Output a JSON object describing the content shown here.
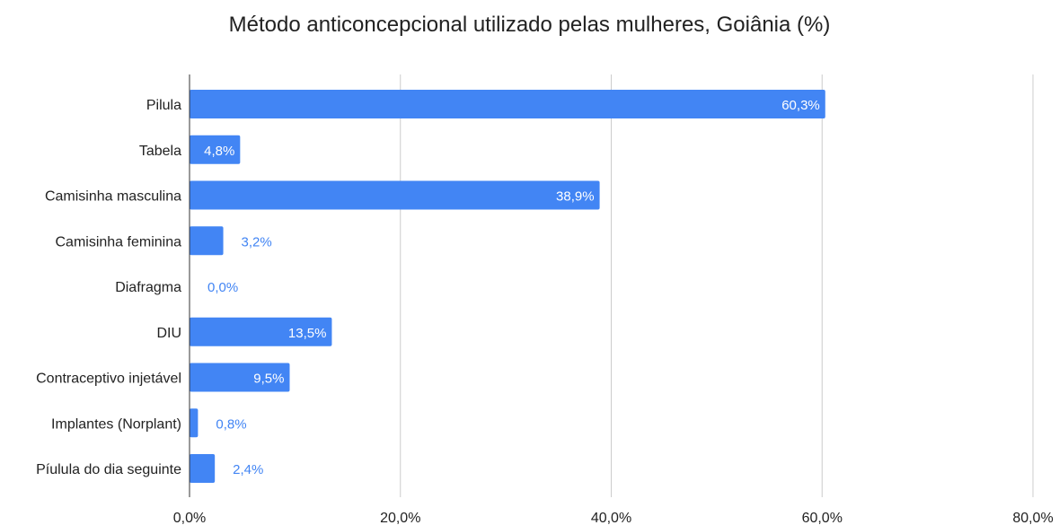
{
  "chart_data": {
    "type": "bar",
    "orientation": "horizontal",
    "title": "Método anticoncepcional utilizado pelas mulheres, Goiânia (%)",
    "categories": [
      "Pilula",
      "Tabela",
      "Camisinha masculina",
      "Camisinha feminina",
      "Diafragma",
      "DIU",
      "Contraceptivo injetável",
      "Implantes (Norplant)",
      "Píulula do dia seguinte"
    ],
    "values": [
      60.3,
      4.8,
      38.9,
      3.2,
      0.0,
      13.5,
      9.5,
      0.8,
      2.4
    ],
    "data_labels": [
      "60,3%",
      "4,8%",
      "38,9%",
      "3,2%",
      "0,0%",
      "13,5%",
      "9,5%",
      "0,8%",
      "2,4%"
    ],
    "xlim": [
      0,
      80
    ],
    "xticks": [
      0,
      20,
      40,
      60,
      80
    ],
    "xtick_labels": [
      "0,0%",
      "20,0%",
      "40,0%",
      "60,0%",
      "80,0%"
    ],
    "xlabel": "",
    "ylabel": "",
    "grid": true,
    "legend": "none",
    "colors": {
      "bar": "#4285f4",
      "grid": "#cccccc",
      "axis": "#333333",
      "label_inside": "#ffffff",
      "label_outside": "#4285f4"
    }
  }
}
